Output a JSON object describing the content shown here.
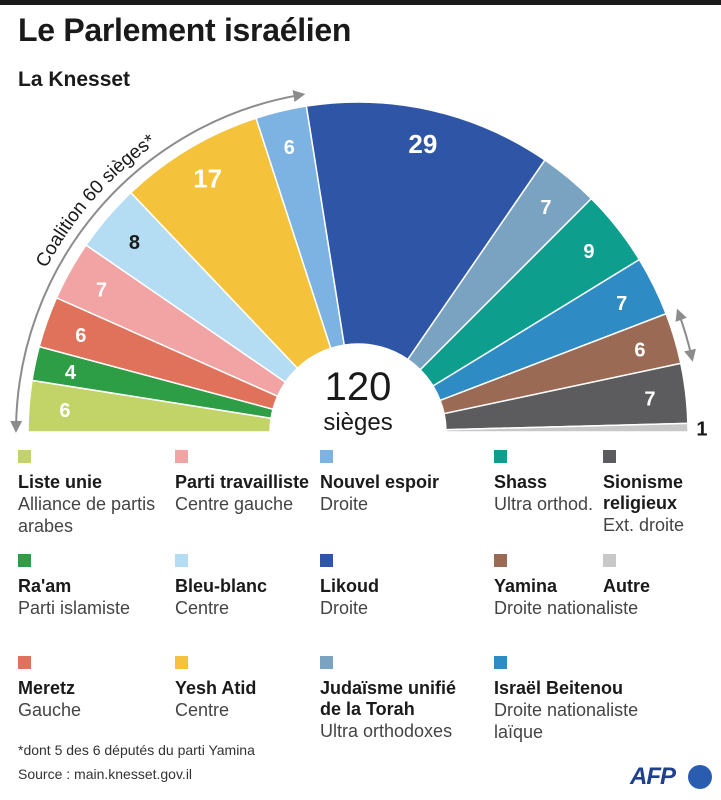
{
  "title": "Le Parlement israélien",
  "subtitle": "La Knesset",
  "chart_data": {
    "type": "pie",
    "variant": "half-donut (parliament)",
    "title": "Le Parlement israélien",
    "subtitle": "La Knesset",
    "total": "120",
    "total_label": "sièges",
    "slices": [
      {
        "label": "Liste unie",
        "description": "Alliance de partis arabes",
        "value": 6,
        "color": "#c2d468"
      },
      {
        "label": "Ra'am",
        "description": "Parti islamiste",
        "value": 4,
        "color": "#2e9e46"
      },
      {
        "label": "Meretz",
        "description": "Gauche",
        "value": 6,
        "color": "#e0725c"
      },
      {
        "label": "Parti travailliste",
        "description": "Centre gauche",
        "value": 7,
        "color": "#f2a3a3"
      },
      {
        "label": "Bleu-blanc",
        "description": "Centre",
        "value": 8,
        "color": "#b4dcf2"
      },
      {
        "label": "Yesh Atid",
        "description": "Centre",
        "value": 17,
        "color": "#f5c33b"
      },
      {
        "label": "Nouvel espoir",
        "description": "Droite",
        "value": 6,
        "color": "#7cb3e3"
      },
      {
        "label": "Likoud",
        "description": "Droite",
        "value": 29,
        "color": "#2f56a6"
      },
      {
        "label": "Judaïsme unifié de la Torah",
        "description": "Ultra orthodoxes",
        "value": 7,
        "color": "#7aa3c2"
      },
      {
        "label": "Shass",
        "description": "Ultra orthod.",
        "value": 9,
        "color": "#0e9e8e"
      },
      {
        "label": "Israël Beitenou",
        "description": "Droite nationaliste laïque",
        "value": 7,
        "color": "#2e8bc4"
      },
      {
        "label": "Yamina",
        "description": "Droite nationaliste",
        "value": 6,
        "color": "#9b6a55"
      },
      {
        "label": "Sionisme religieux",
        "description": "Ext. droite",
        "value": 7,
        "color": "#5c5c5e"
      },
      {
        "label": "Autre",
        "description": "",
        "value": 1,
        "color": "#c8c8c8"
      }
    ],
    "annotations": [
      {
        "text": "Coalition 60 sièges*",
        "from_slice": 0,
        "to_slice": 6
      },
      {
        "text": "",
        "from_slice": 11,
        "to_slice": 11
      }
    ]
  },
  "legend": {
    "columns": [
      [
        0,
        1,
        2
      ],
      [
        3,
        4,
        5
      ],
      [
        6,
        7,
        8
      ],
      [
        9,
        11,
        10
      ],
      [
        12,
        13
      ]
    ]
  },
  "footnote": "*dont 5 des 6 députés du parti Yamina",
  "source": "Source : main.knesset.gov.il",
  "logo": "AFP"
}
